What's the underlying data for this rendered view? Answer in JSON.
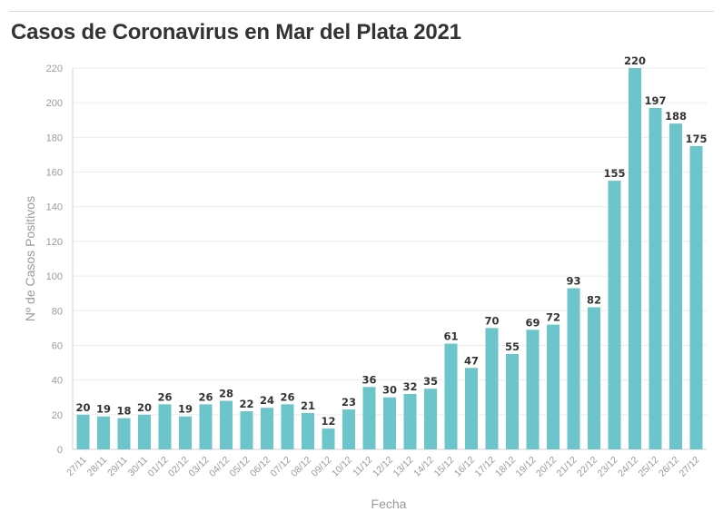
{
  "chart_data": {
    "type": "bar",
    "title": "Casos de Coronavirus en Mar del Plata 2021",
    "xlabel": "Fecha",
    "ylabel": "Nº de Casos Positivos",
    "ylim": [
      0,
      220
    ],
    "yticks": [
      0,
      20,
      40,
      60,
      80,
      100,
      120,
      140,
      160,
      180,
      200,
      220
    ],
    "grid": true,
    "legend": "none",
    "bar_color": "#6bc5cb",
    "categories": [
      "27/11",
      "28/11",
      "29/11",
      "30/11",
      "01/12",
      "02/12",
      "03/12",
      "04/12",
      "05/12",
      "06/12",
      "07/12",
      "08/12",
      "09/12",
      "10/12",
      "11/12",
      "12/12",
      "13/12",
      "14/12",
      "15/12",
      "16/12",
      "17/12",
      "18/12",
      "19/12",
      "20/12",
      "21/12",
      "22/12",
      "23/12",
      "24/12",
      "25/12",
      "26/12",
      "27/12"
    ],
    "values": [
      20,
      19,
      18,
      20,
      26,
      19,
      26,
      28,
      22,
      24,
      26,
      21,
      12,
      23,
      36,
      30,
      32,
      35,
      61,
      47,
      70,
      55,
      69,
      72,
      93,
      82,
      155,
      220,
      197,
      188,
      175
    ]
  }
}
